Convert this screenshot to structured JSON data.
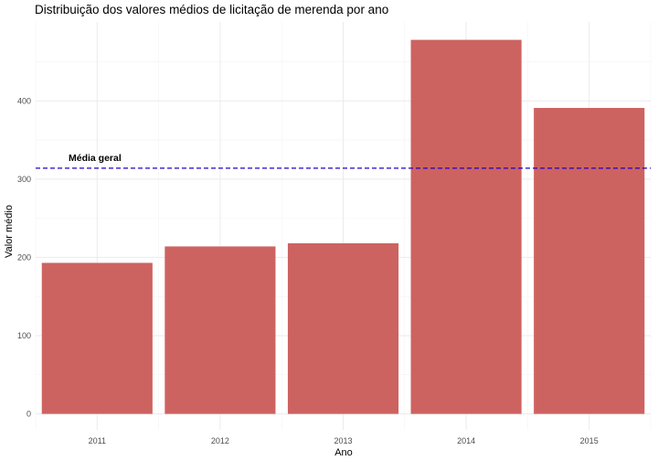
{
  "chart_data": {
    "type": "bar",
    "title": "Distribuição dos valores médios de licitação de merenda por ano",
    "xlabel": "Ano",
    "ylabel": "Valor médio",
    "categories": [
      "2011",
      "2012",
      "2013",
      "2014",
      "2015"
    ],
    "values": [
      193,
      214,
      218,
      478,
      391
    ],
    "ylim": [
      0,
      500
    ],
    "yticks": [
      0,
      100,
      200,
      300,
      400
    ],
    "grid": true,
    "bar_color": "#CD6360",
    "reference_line": {
      "value": 314,
      "label": "Média geral",
      "color": "#1F00C8",
      "style": "dashed"
    }
  }
}
